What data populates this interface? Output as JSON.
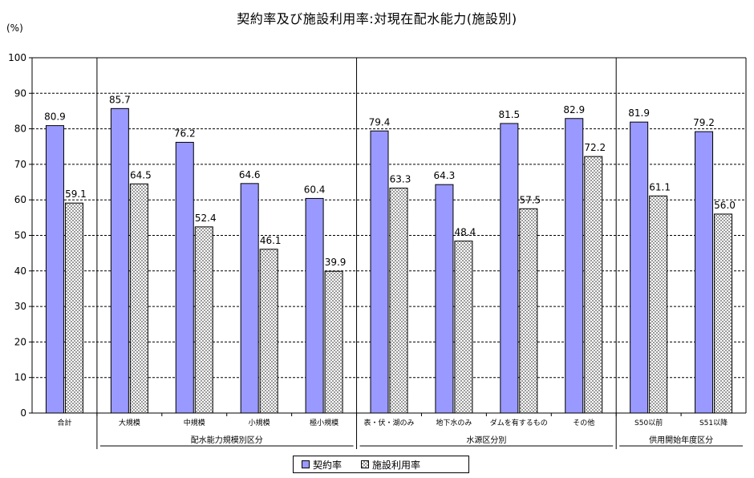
{
  "chart_data": {
    "type": "bar",
    "title": "契約率及び施設利用率:対現在配水能力(施設別)",
    "ylabel": "(%)",
    "ylim": [
      0,
      100
    ],
    "yticks": [
      "0",
      "10",
      "20",
      "30",
      "40",
      "50",
      "60",
      "70",
      "80",
      "90",
      "100"
    ],
    "grid": true,
    "legend_position": "bottom",
    "categories": [
      "合計",
      "大規模",
      "中規模",
      "小規模",
      "極小規模",
      "表・伏・湖のみ",
      "地下水のみ",
      "ダムを有するもの",
      "その他",
      "S50以前",
      "S51以降"
    ],
    "series": [
      {
        "name": "契約率",
        "color": "#9999ff",
        "values": [
          80.9,
          85.7,
          76.2,
          64.6,
          60.4,
          79.4,
          64.3,
          81.5,
          82.9,
          81.9,
          79.2
        ],
        "labels": [
          "80.9",
          "85.7",
          "76.2",
          "64.6",
          "60.4",
          "79.4",
          "64.3",
          "81.5",
          "82.9",
          "81.9",
          "79.2"
        ]
      },
      {
        "name": "施設利用率",
        "color": "#e0e0e0",
        "pattern": "checkered",
        "values": [
          59.1,
          64.5,
          52.4,
          46.1,
          39.9,
          63.3,
          48.4,
          57.5,
          72.2,
          61.1,
          56.0
        ],
        "labels": [
          "59.1",
          "64.5",
          "52.4",
          "46.1",
          "39.9",
          "63.3",
          "48.4",
          "57.5",
          "72.2",
          "61.1",
          "56.0"
        ]
      }
    ],
    "groups": [
      {
        "label": "配水能力規模別区分",
        "categories": [
          "大規模",
          "中規模",
          "小規模",
          "極小規模"
        ]
      },
      {
        "label": "水源区分別",
        "categories": [
          "表・伏・湖のみ",
          "地下水のみ",
          "ダムを有するもの",
          "その他"
        ]
      },
      {
        "label": "供用開始年度区分",
        "categories": [
          "S50以前",
          "S51以降"
        ]
      }
    ]
  }
}
